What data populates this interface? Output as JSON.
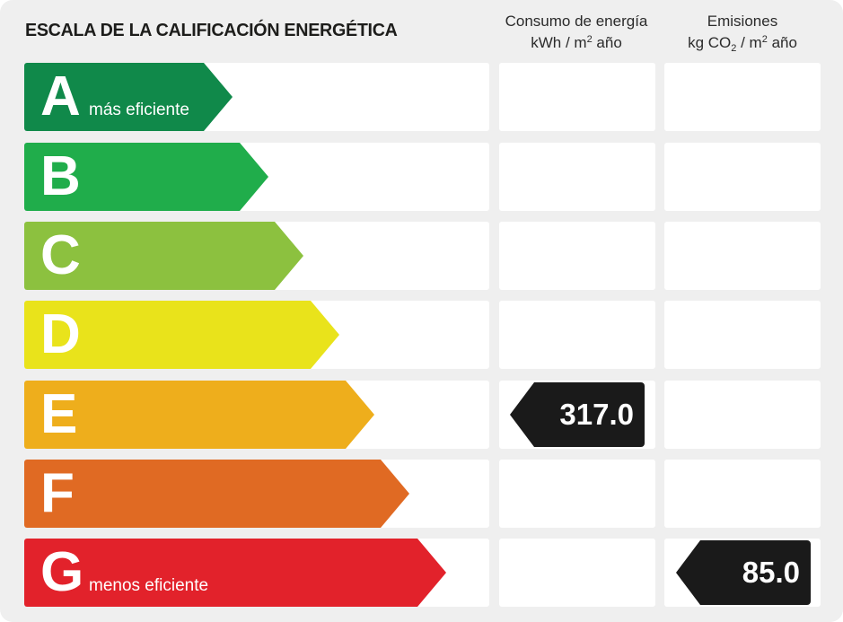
{
  "title": "ESCALA DE LA CALIFICACIÓN ENERGÉTICA",
  "columns": {
    "consumption": {
      "line1": "Consumo de energía",
      "line2_a": "kWh / m",
      "line2_sup": "2",
      "line2_b": " año"
    },
    "emissions": {
      "line1": "Emisiones",
      "line2_a": "kg CO",
      "line2_sub": "2",
      "line2_b": " / m",
      "line2_sup": "2",
      "line2_c": " año"
    }
  },
  "ratings": [
    {
      "letter": "A",
      "label": "más eficiente",
      "color": "#10894a"
    },
    {
      "letter": "B",
      "label": "",
      "color": "#20ad4b"
    },
    {
      "letter": "C",
      "label": "",
      "color": "#8cc13f"
    },
    {
      "letter": "D",
      "label": "",
      "color": "#e9e31b"
    },
    {
      "letter": "E",
      "label": "",
      "color": "#eeae1c"
    },
    {
      "letter": "F",
      "label": "",
      "color": "#e06a23"
    },
    {
      "letter": "G",
      "label": "menos eficiente",
      "color": "#e2222b"
    }
  ],
  "consumption_value": {
    "rating": "E",
    "value": "317.0"
  },
  "emissions_value": {
    "rating": "G",
    "value": "85.0"
  }
}
